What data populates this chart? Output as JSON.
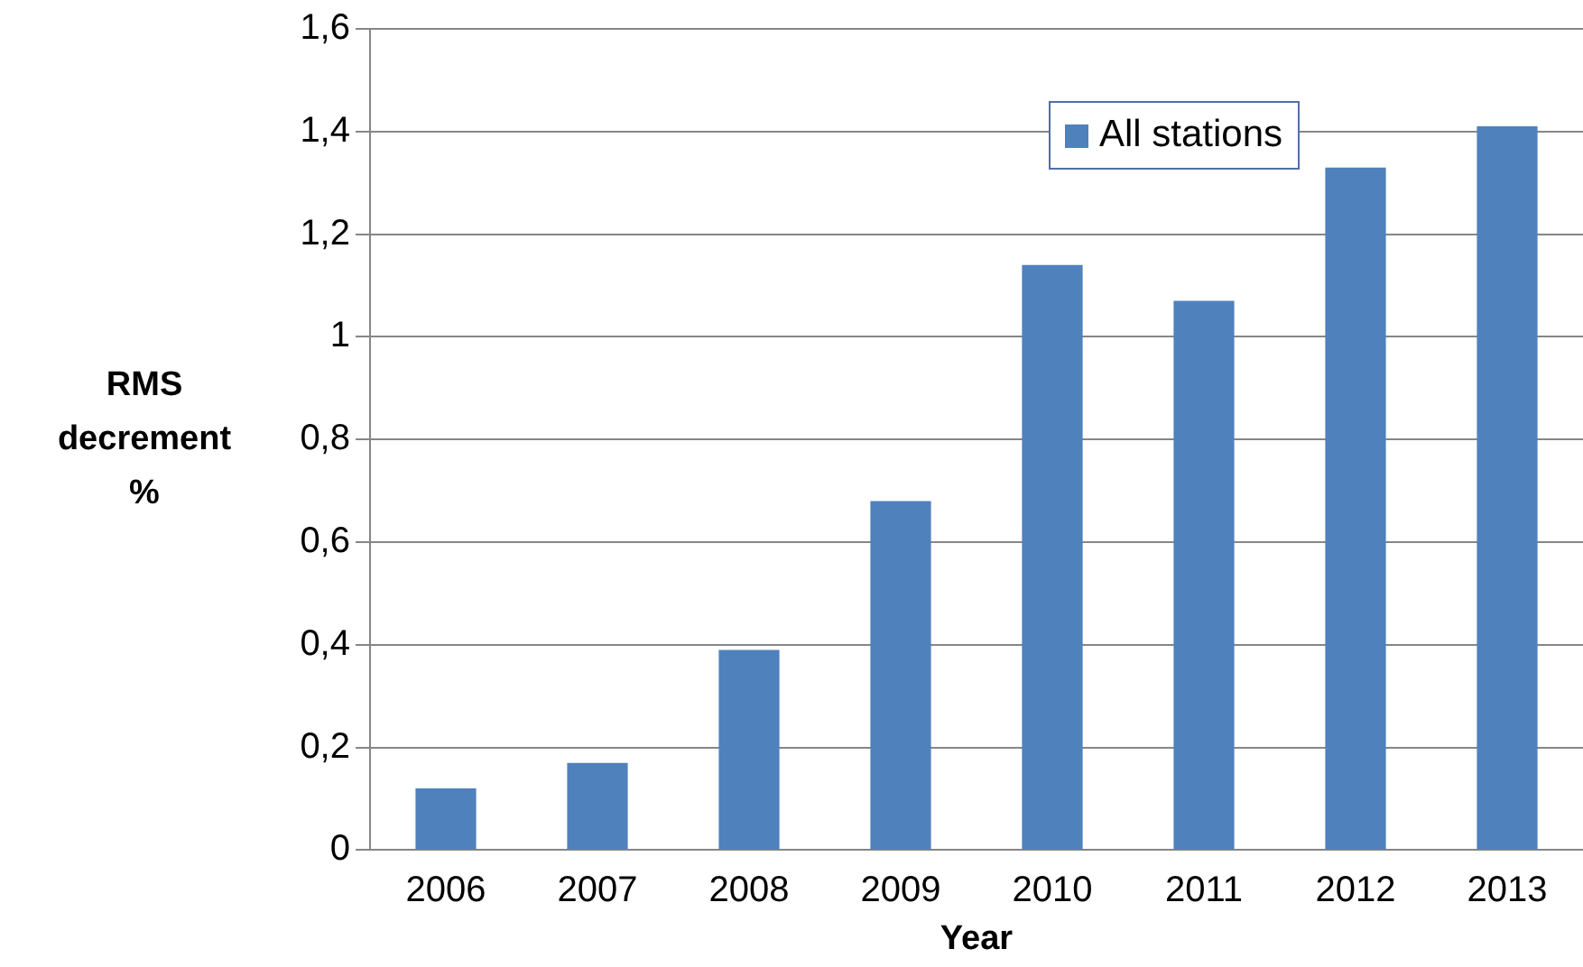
{
  "chart_data": {
    "type": "bar",
    "xlabel": "Year",
    "ylabel": "RMS decrement %",
    "categories": [
      "2006",
      "2007",
      "2008",
      "2009",
      "2010",
      "2011",
      "2012",
      "2013"
    ],
    "series": [
      {
        "name": "All stations",
        "color": "#4f81bd",
        "values": [
          0.12,
          0.17,
          0.39,
          0.68,
          1.14,
          1.07,
          1.33,
          1.41
        ]
      }
    ],
    "ylim": [
      0,
      1.6
    ],
    "yticks": [
      0,
      {
        "value": 0.2,
        "label": "0,2"
      },
      {
        "value": 0.4,
        "label": "0,4"
      },
      {
        "value": 0.6,
        "label": "0,6"
      },
      {
        "value": 0.8,
        "label": "0,8"
      },
      1,
      {
        "value": 1.2,
        "label": "1,2"
      },
      {
        "value": 1.4,
        "label": "1,4"
      },
      {
        "value": 1.6,
        "label": "1,6"
      }
    ],
    "grid": "y",
    "legend": "top right"
  }
}
